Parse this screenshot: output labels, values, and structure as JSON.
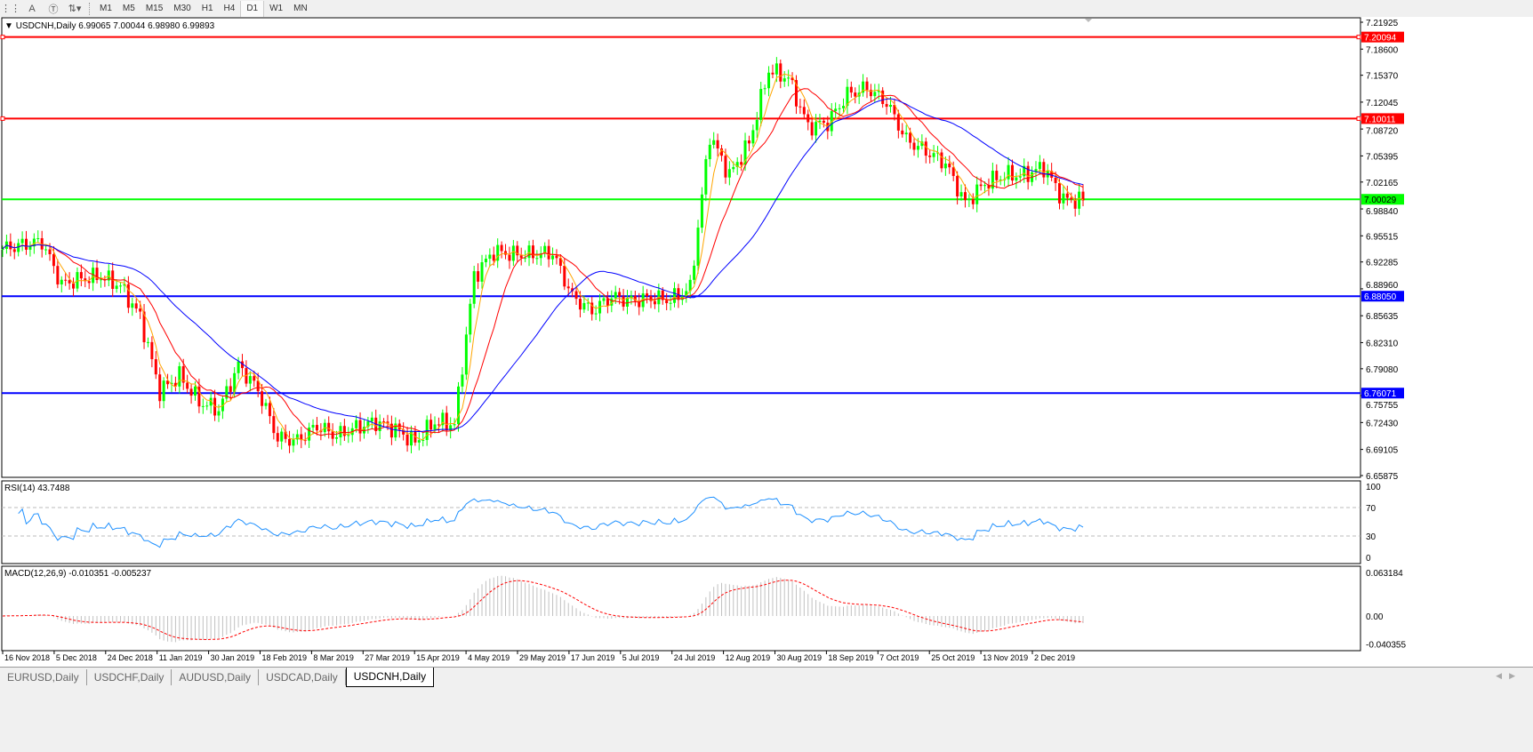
{
  "toolbar": {
    "icons": [
      "grid-f-icon",
      "text-a-icon",
      "text-label-icon",
      "arrows-icon"
    ],
    "timeframes": [
      "M1",
      "M5",
      "M15",
      "M30",
      "H1",
      "H4",
      "D1",
      "W1",
      "MN"
    ],
    "active_timeframe": "D1"
  },
  "chart_header": {
    "symbol": "USDCNH,Daily",
    "ohlc": "6.99065 7.00044 6.98980 6.99893"
  },
  "price_axis": [
    "7.21925",
    "7.18600",
    "7.15370",
    "7.12045",
    "7.08720",
    "7.05395",
    "7.02165",
    "6.98840",
    "6.95515",
    "6.92285",
    "6.88960",
    "6.85635",
    "6.82310",
    "6.79080",
    "6.75755",
    "6.72430",
    "6.69105",
    "6.65875"
  ],
  "horizontal_lines": [
    {
      "price": "7.20094",
      "color": "#ff0000"
    },
    {
      "price": "7.10011",
      "color": "#ff0000"
    },
    {
      "price": "7.00029",
      "color": "#00ff00"
    },
    {
      "price": "6.88050",
      "color": "#0000ff"
    },
    {
      "price": "6.76071",
      "color": "#0000ff"
    }
  ],
  "rsi": {
    "label": "RSI(14) 43.7488",
    "levels": [
      "100",
      "70",
      "30",
      "0"
    ],
    "color": "#1e90ff"
  },
  "macd": {
    "label": "MACD(12,26,9) -0.010351 -0.005237",
    "levels": [
      "0.063184",
      "0.00",
      "-0.040355"
    ],
    "signal_color": "#ff0000",
    "hist_color": "#c0c0c0"
  },
  "date_axis": [
    "16 Nov 2018",
    "5 Dec 2018",
    "24 Dec 2018",
    "11 Jan 2019",
    "30 Jan 2019",
    "18 Feb 2019",
    "8 Mar 2019",
    "27 Mar 2019",
    "15 Apr 2019",
    "4 May 2019",
    "29 May 2019",
    "17 Jun 2019",
    "5 Jul 2019",
    "24 Jul 2019",
    "12 Aug 2019",
    "30 Aug 2019",
    "18 Sep 2019",
    "7 Oct 2019",
    "25 Oct 2019",
    "13 Nov 2019",
    "2 Dec 2019"
  ],
  "tabs": [
    "EURUSD,Daily",
    "USDCHF,Daily",
    "AUDUSD,Daily",
    "USDCAD,Daily",
    "USDCNH,Daily"
  ],
  "active_tab": "USDCNH,Daily",
  "chart_data": {
    "type": "candlestick",
    "bull_color": "#00ff00",
    "bear_color": "#ff0000",
    "ma_colors": [
      "#ffa500",
      "#ff0000",
      "#0000ff"
    ],
    "ylim": [
      6.65875,
      7.21925
    ],
    "weekly_close": [
      6.939,
      6.944,
      6.948,
      6.895,
      6.902,
      6.905,
      6.893,
      6.855,
      6.763,
      6.782,
      6.75,
      6.74,
      6.795,
      6.765,
      6.705,
      6.702,
      6.72,
      6.708,
      6.718,
      6.725,
      6.716,
      6.7,
      6.725,
      6.722,
      6.905,
      6.936,
      6.932,
      6.932,
      6.934,
      6.88,
      6.862,
      6.88,
      6.875,
      6.878,
      6.876,
      6.89,
      7.08,
      7.03,
      7.07,
      7.16,
      7.15,
      7.09,
      7.095,
      7.13,
      7.138,
      7.12,
      7.074,
      7.06,
      7.045,
      6.995,
      7.02,
      7.03,
      7.03,
      7.04,
      7.0,
      6.999
    ]
  }
}
